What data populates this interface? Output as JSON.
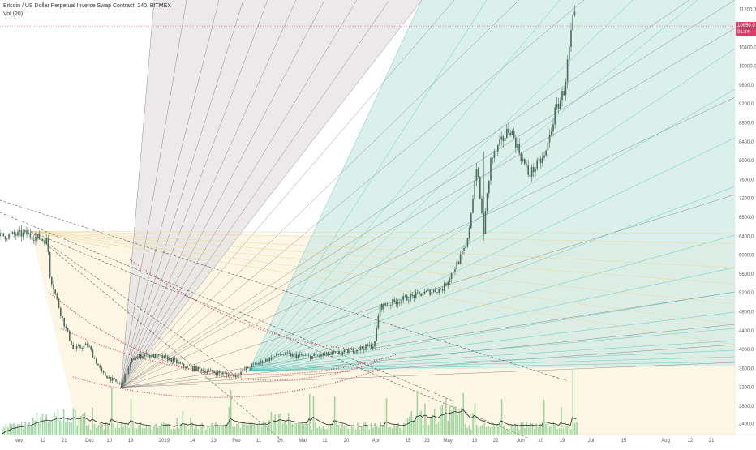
{
  "legend": {
    "symbol": "Bitcoin / US Dollar Perpetual Inverse Swap Contract, 240, BITMEX",
    "volume": "Vol (20)"
  },
  "colors": {
    "background": "#ffffff",
    "candle": "#4a6b5a",
    "volume": "#8fcf95",
    "volume_ma": "#2a2a2a",
    "price_line": "#e23b6a",
    "red_dots": "#d8324a",
    "teal_fill": "#cfe9e4",
    "teal_line": "#46c3ba",
    "grey_fill": "#e6e3e3",
    "grey_line": "#404040",
    "beige_fill": "#fcf3dc",
    "beige_line": "#ecd8a0",
    "axis_text": "#5a5a5a"
  },
  "chart_data": {
    "type": "candlestick",
    "title": "Bitcoin / US Dollar Perpetual Inverse Swap Contract, 240, BITMEX",
    "x_tick_labels": [
      "Nov",
      "12",
      "21",
      "Dec",
      "10",
      "19",
      "2019",
      "14",
      "23",
      "Feb",
      "11",
      "20",
      "Mar",
      "11",
      "20",
      "Apr",
      "15",
      "23",
      "May",
      "13",
      "22",
      "Jun",
      "10",
      "19",
      "Jul",
      "15",
      "Aug",
      "12",
      "21"
    ],
    "y_tick_labels": [
      "11200.0",
      "10800.0",
      "10400.0",
      "10000.0",
      "9600.0",
      "9200.0",
      "8800.0",
      "8400.0",
      "8000.0",
      "7600.0",
      "7200.0",
      "6800.0",
      "6400.0",
      "6000.0",
      "5600.0",
      "5200.0",
      "4800.0",
      "4400.0",
      "4000.0",
      "3600.0",
      "3200.0",
      "2800.0",
      "2400.0"
    ],
    "ylim": [
      2200,
      11400
    ],
    "price_series": [
      {
        "date": "2018-10-25",
        "price": 6400
      },
      {
        "date": "2018-11-05",
        "price": 6450
      },
      {
        "date": "2018-11-14",
        "price": 6300
      },
      {
        "date": "2018-11-15",
        "price": 5600
      },
      {
        "date": "2018-11-20",
        "price": 4700
      },
      {
        "date": "2018-11-25",
        "price": 4000
      },
      {
        "date": "2018-12-01",
        "price": 4100
      },
      {
        "date": "2018-12-07",
        "price": 3500
      },
      {
        "date": "2018-12-15",
        "price": 3250
      },
      {
        "date": "2018-12-20",
        "price": 3800
      },
      {
        "date": "2018-12-25",
        "price": 3900
      },
      {
        "date": "2019-01-05",
        "price": 3800
      },
      {
        "date": "2019-01-10",
        "price": 3650
      },
      {
        "date": "2019-01-20",
        "price": 3550
      },
      {
        "date": "2019-02-01",
        "price": 3450
      },
      {
        "date": "2019-02-08",
        "price": 3650
      },
      {
        "date": "2019-02-20",
        "price": 3900
      },
      {
        "date": "2019-03-05",
        "price": 3850
      },
      {
        "date": "2019-03-20",
        "price": 3950
      },
      {
        "date": "2019-04-01",
        "price": 4100
      },
      {
        "date": "2019-04-03",
        "price": 4900
      },
      {
        "date": "2019-04-15",
        "price": 5100
      },
      {
        "date": "2019-04-30",
        "price": 5300
      },
      {
        "date": "2019-05-10",
        "price": 6200
      },
      {
        "date": "2019-05-14",
        "price": 7900
      },
      {
        "date": "2019-05-17",
        "price": 6500
      },
      {
        "date": "2019-05-20",
        "price": 8000
      },
      {
        "date": "2019-05-28",
        "price": 8700
      },
      {
        "date": "2019-06-05",
        "price": 7700
      },
      {
        "date": "2019-06-12",
        "price": 8100
      },
      {
        "date": "2019-06-16",
        "price": 9000
      },
      {
        "date": "2019-06-20",
        "price": 9500
      },
      {
        "date": "2019-06-22",
        "price": 10300
      },
      {
        "date": "2019-06-24",
        "price": 11100
      },
      {
        "date": "2019-06-25",
        "price": 10850
      }
    ],
    "current_price": 10850,
    "price_tag_labels": [
      "10850.0",
      "01:34"
    ],
    "fan_origins": [
      {
        "name": "high-fan-origin",
        "date": "2018-11-07",
        "price": 6500
      },
      {
        "name": "low-fan-origin",
        "date": "2018-12-15",
        "price": 3200
      },
      {
        "name": "mid-fan-origin",
        "date": "2019-02-07",
        "price": 3550
      }
    ]
  }
}
